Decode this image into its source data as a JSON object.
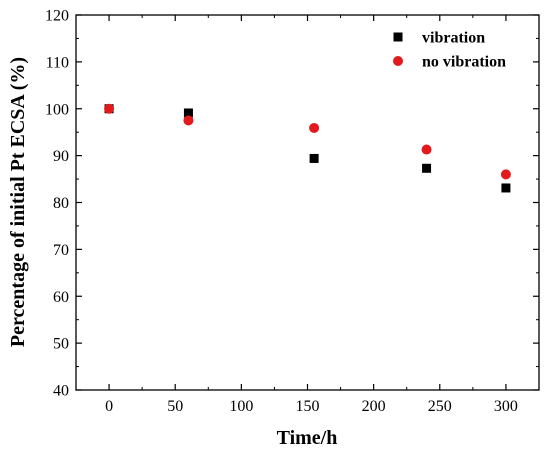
{
  "chart_data": {
    "type": "scatter",
    "xlabel": "Time/h",
    "ylabel": "Percentage of initial Pt ECSA (%)",
    "xlim": [
      -25,
      325
    ],
    "ylim": [
      40,
      120
    ],
    "xticks": [
      0,
      50,
      100,
      150,
      200,
      250,
      300
    ],
    "yticks": [
      40,
      50,
      60,
      70,
      80,
      90,
      100,
      110,
      120
    ],
    "grid": false,
    "legend_position": "top-right",
    "series": [
      {
        "name": "vibration",
        "marker": "square",
        "color": "#000000",
        "x": [
          0,
          60,
          155,
          240,
          300
        ],
        "y": [
          100.0,
          99.1,
          89.4,
          87.3,
          83.1
        ]
      },
      {
        "name": "no vibration",
        "marker": "circle",
        "color": "#e31a1c",
        "x": [
          0,
          60,
          155,
          240,
          300
        ],
        "y": [
          100.0,
          97.5,
          95.9,
          91.3,
          86.0
        ]
      }
    ]
  }
}
